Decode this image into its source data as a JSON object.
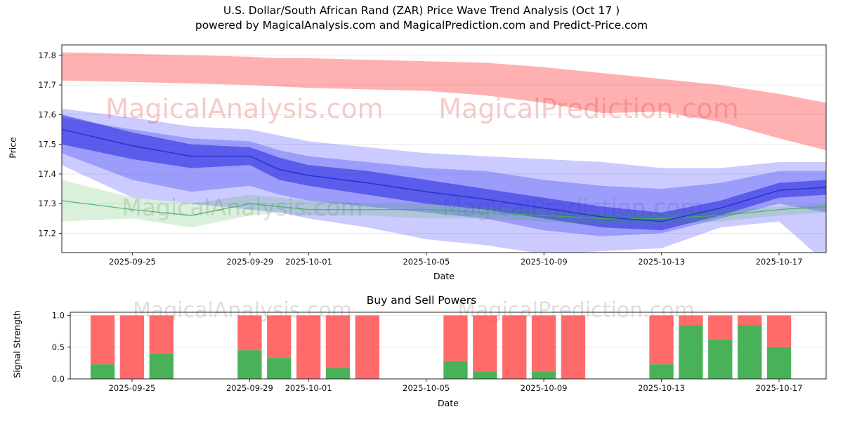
{
  "title": {
    "line1": "U.S. Dollar/South African Rand (ZAR) Price Wave Trend Analysis (Oct 17 )",
    "line2": "powered by MagicalAnalysis.com and MagicalPrediction.com and Predict-Price.com"
  },
  "watermarks": {
    "analysis": "MagicalAnalysis.com",
    "prediction": "MagicalPrediction.com"
  },
  "chart_data": [
    {
      "id": "price_wave",
      "type": "area",
      "title": "U.S. Dollar/South African Rand (ZAR) Price Wave Trend Analysis (Oct 17 )",
      "xlabel": "Date",
      "ylabel": "Price",
      "ylim": [
        17.135,
        17.835
      ],
      "yticks": [
        17.2,
        17.3,
        17.4,
        17.5,
        17.6,
        17.7,
        17.8
      ],
      "ytick_labels": [
        "17.2",
        "17.3",
        "17.4",
        "17.5",
        "17.6",
        "17.7",
        "17.8"
      ],
      "xlim_days": [
        0.6,
        26.6
      ],
      "xticks": [
        {
          "day": 3,
          "label": "2025-09-25"
        },
        {
          "day": 7,
          "label": "2025-09-29"
        },
        {
          "day": 9,
          "label": "2025-10-01"
        },
        {
          "day": 13,
          "label": "2025-10-05"
        },
        {
          "day": 17,
          "label": "2025-10-09"
        },
        {
          "day": 21,
          "label": "2025-10-13"
        },
        {
          "day": 25,
          "label": "2025-10-17"
        }
      ],
      "days": [
        0.6,
        3,
        5,
        7,
        8,
        9,
        11,
        13,
        15,
        17,
        19,
        21,
        23,
        25,
        26.6
      ],
      "bands": [
        {
          "name": "resistance-band-red",
          "color": "#ff3333",
          "opacity": 0.38,
          "upper": [
            17.81,
            17.805,
            17.8,
            17.795,
            17.79,
            17.79,
            17.785,
            17.78,
            17.775,
            17.76,
            17.74,
            17.72,
            17.7,
            17.67,
            17.64
          ],
          "lower": [
            17.715,
            17.71,
            17.705,
            17.7,
            17.695,
            17.69,
            17.685,
            17.68,
            17.665,
            17.64,
            17.605,
            17.61,
            17.575,
            17.52,
            17.48
          ]
        },
        {
          "name": "forecast-band-blue-outer",
          "color": "#4444ff",
          "opacity": 0.28,
          "upper": [
            17.62,
            17.59,
            17.56,
            17.55,
            17.53,
            17.51,
            17.49,
            17.47,
            17.46,
            17.45,
            17.44,
            17.42,
            17.42,
            17.44,
            17.44
          ],
          "lower": [
            17.43,
            17.32,
            17.3,
            17.28,
            17.27,
            17.25,
            17.22,
            17.18,
            17.16,
            17.13,
            17.14,
            17.15,
            17.22,
            17.24,
            17.1
          ]
        },
        {
          "name": "forecast-band-blue-mid",
          "color": "#3b3bf2",
          "opacity": 0.32,
          "upper": [
            17.59,
            17.55,
            17.52,
            17.51,
            17.48,
            17.46,
            17.44,
            17.42,
            17.41,
            17.38,
            17.36,
            17.35,
            17.37,
            17.41,
            17.41
          ],
          "lower": [
            17.47,
            17.38,
            17.34,
            17.36,
            17.33,
            17.31,
            17.29,
            17.27,
            17.25,
            17.21,
            17.19,
            17.2,
            17.25,
            17.3,
            17.27
          ]
        },
        {
          "name": "forecast-band-blue-core",
          "color": "#2626e0",
          "opacity": 0.55,
          "upper": [
            17.6,
            17.54,
            17.5,
            17.49,
            17.455,
            17.43,
            17.41,
            17.38,
            17.35,
            17.32,
            17.29,
            17.27,
            17.31,
            17.37,
            17.38
          ],
          "lower": [
            17.5,
            17.45,
            17.42,
            17.43,
            17.38,
            17.36,
            17.33,
            17.3,
            17.28,
            17.25,
            17.22,
            17.21,
            17.26,
            17.32,
            17.33
          ]
        },
        {
          "name": "support-band-green",
          "color": "#33aa33",
          "opacity": 0.18,
          "upper": [
            17.38,
            17.32,
            17.3,
            17.33,
            17.32,
            17.31,
            17.3,
            17.3,
            17.29,
            17.28,
            17.27,
            17.27,
            17.28,
            17.29,
            17.3
          ],
          "lower": [
            17.24,
            17.25,
            17.22,
            17.26,
            17.27,
            17.26,
            17.26,
            17.25,
            17.25,
            17.24,
            17.23,
            17.23,
            17.24,
            17.26,
            17.27
          ]
        }
      ],
      "lines": [
        {
          "name": "trend-line-green",
          "color": "#3fae5a",
          "width": 1.2,
          "opacity": 0.9,
          "values": [
            17.31,
            17.28,
            17.26,
            17.3,
            17.29,
            17.28,
            17.28,
            17.28,
            17.27,
            17.26,
            17.25,
            17.25,
            17.26,
            17.28,
            17.29
          ]
        },
        {
          "name": "trend-line-blue",
          "color": "#2430c8",
          "width": 1.5,
          "opacity": 0.9,
          "values": [
            17.55,
            17.495,
            17.46,
            17.46,
            17.415,
            17.395,
            17.37,
            17.34,
            17.315,
            17.285,
            17.255,
            17.24,
            17.285,
            17.345,
            17.355
          ]
        }
      ]
    },
    {
      "id": "buy_sell_powers",
      "type": "bar",
      "title": "Buy and Sell Powers",
      "xlabel": "Date",
      "ylabel": "Signal Strength",
      "ylim": [
        0,
        1.05
      ],
      "yticks": [
        0,
        0.5,
        1.0
      ],
      "ytick_labels": [
        "0.0",
        "0.5",
        "1.0"
      ],
      "xlim_days": [
        0.9,
        26.6
      ],
      "xticks": [
        {
          "day": 3,
          "label": "2025-09-25"
        },
        {
          "day": 7,
          "label": "2025-09-29"
        },
        {
          "day": 9,
          "label": "2025-10-01"
        },
        {
          "day": 13,
          "label": "2025-10-05"
        },
        {
          "day": 17,
          "label": "2025-10-09"
        },
        {
          "day": 21,
          "label": "2025-10-13"
        },
        {
          "day": 25,
          "label": "2025-10-17"
        }
      ],
      "bar_width_days": 0.82,
      "bar_colors": {
        "buy": "#3fae4f",
        "sell": "#ff4a4a"
      },
      "bars": [
        {
          "day": 2,
          "buy": 0.23,
          "sell": 0.77
        },
        {
          "day": 3,
          "buy": 0.0,
          "sell": 1.0
        },
        {
          "day": 4,
          "buy": 0.4,
          "sell": 0.6
        },
        {
          "day": 7,
          "buy": 0.45,
          "sell": 0.55
        },
        {
          "day": 8,
          "buy": 0.33,
          "sell": 0.67
        },
        {
          "day": 9,
          "buy": 0.0,
          "sell": 1.0
        },
        {
          "day": 10,
          "buy": 0.17,
          "sell": 0.83
        },
        {
          "day": 11,
          "buy": 0.0,
          "sell": 1.0
        },
        {
          "day": 14,
          "buy": 0.28,
          "sell": 0.72
        },
        {
          "day": 15,
          "buy": 0.12,
          "sell": 0.88
        },
        {
          "day": 16,
          "buy": 0.0,
          "sell": 1.0
        },
        {
          "day": 17,
          "buy": 0.11,
          "sell": 0.89
        },
        {
          "day": 18,
          "buy": 0.0,
          "sell": 1.0
        },
        {
          "day": 21,
          "buy": 0.23,
          "sell": 0.77
        },
        {
          "day": 22,
          "buy": 0.84,
          "sell": 0.16
        },
        {
          "day": 23,
          "buy": 0.62,
          "sell": 0.38
        },
        {
          "day": 24,
          "buy": 0.85,
          "sell": 0.15
        },
        {
          "day": 25,
          "buy": 0.5,
          "sell": 0.5
        }
      ]
    }
  ]
}
